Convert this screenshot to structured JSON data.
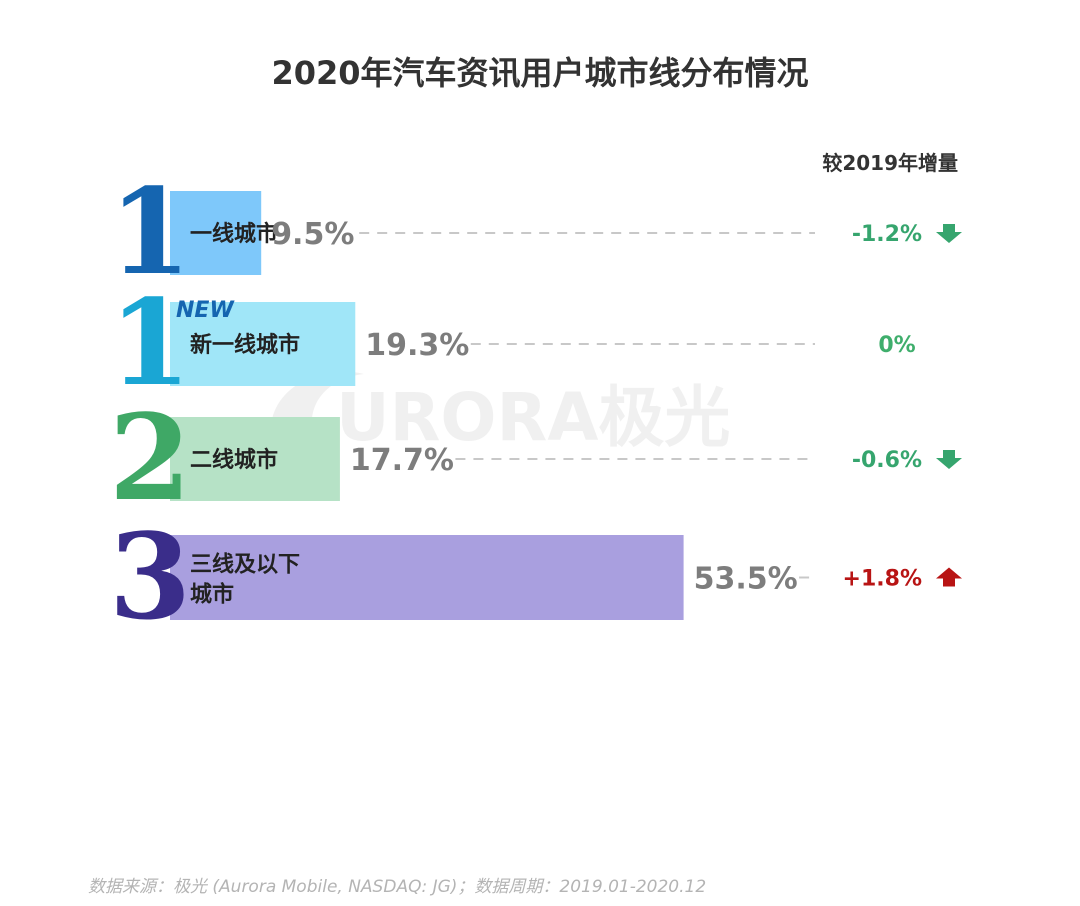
{
  "title": "2020年汽车资讯用户城市线分布情况",
  "delta_header": "较2019年增量",
  "new_badge": "NEW",
  "watermark": "URORA极光",
  "footer": "数据来源：极光 (Aurora Mobile, NASDAQ: JG)；数据周期：2019.01-2020.12",
  "chart_data": {
    "type": "bar",
    "title": "2020年汽车资讯用户城市线分布情况",
    "unit": "%",
    "categories": [
      "一线城市",
      "新一线城市",
      "二线城市",
      "三线及以下城市"
    ],
    "rank_digits": [
      "1",
      "1",
      "2",
      "3"
    ],
    "values": [
      9.5,
      19.3,
      17.7,
      53.5
    ],
    "value_labels": [
      "9.5%",
      "19.3%",
      "17.7%",
      "53.5%"
    ],
    "delta_labels": [
      "-1.2%",
      "0%",
      "-0.6%",
      "+1.8%"
    ],
    "delta_direction": [
      "down",
      "none",
      "down",
      "up"
    ],
    "bar_colors": [
      "#7ec8fa",
      "#a0e6f8",
      "#b6e2c6",
      "#a99fdf"
    ],
    "digit_colors": [
      "#1565b0",
      "#1aa6d4",
      "#3fa866",
      "#3a2d8a"
    ],
    "colors": {
      "down": "#36a56e",
      "up": "#b81414",
      "neutral": "#3fae6c",
      "value": "#7d7d7d",
      "title": "#333333"
    }
  }
}
